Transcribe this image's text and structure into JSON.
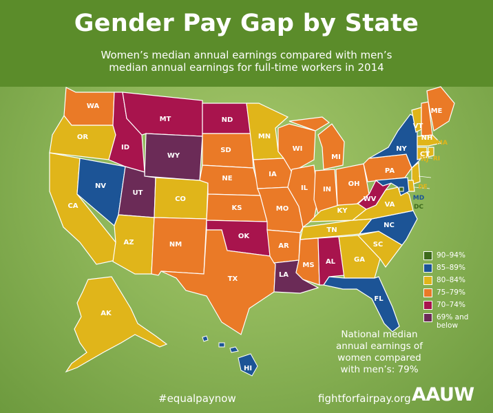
{
  "title": "Gender Pay Gap by State",
  "subtitle": "Women’s median annual earnings compared with men’s median annual earnings for full-time workers in 2014",
  "colors": {
    "range_90_94": "#3d6a1c",
    "range_85_89": "#1c5496",
    "range_80_84": "#e0b51a",
    "range_75_79": "#ea7a27",
    "range_70_74": "#a8144d",
    "range_69_below": "#6b2b57"
  },
  "legend": [
    {
      "label": "90–94%",
      "color": "#3d6a1c"
    },
    {
      "label": "85–89%",
      "color": "#1c5496"
    },
    {
      "label": "80–84%",
      "color": "#e0b51a"
    },
    {
      "label": "75–79%",
      "color": "#ea7a27"
    },
    {
      "label": "70–74%",
      "color": "#a8144d"
    },
    {
      "label": "69% and below",
      "color": "#6b2b57"
    }
  ],
  "states": [
    {
      "abbr": "WA",
      "range": "75–79%"
    },
    {
      "abbr": "OR",
      "range": "80–84%"
    },
    {
      "abbr": "CA",
      "range": "80–84%"
    },
    {
      "abbr": "NV",
      "range": "85–89%"
    },
    {
      "abbr": "ID",
      "range": "70–74%"
    },
    {
      "abbr": "MT",
      "range": "70–74%"
    },
    {
      "abbr": "WY",
      "range": "69% and below"
    },
    {
      "abbr": "UT",
      "range": "69% and below"
    },
    {
      "abbr": "AZ",
      "range": "80–84%"
    },
    {
      "abbr": "CO",
      "range": "80–84%"
    },
    {
      "abbr": "NM",
      "range": "75–79%"
    },
    {
      "abbr": "ND",
      "range": "70–74%"
    },
    {
      "abbr": "SD",
      "range": "75–79%"
    },
    {
      "abbr": "NE",
      "range": "75–79%"
    },
    {
      "abbr": "KS",
      "range": "75–79%"
    },
    {
      "abbr": "OK",
      "range": "70–74%"
    },
    {
      "abbr": "TX",
      "range": "75–79%"
    },
    {
      "abbr": "MN",
      "range": "80–84%"
    },
    {
      "abbr": "IA",
      "range": "75–79%"
    },
    {
      "abbr": "MO",
      "range": "75–79%"
    },
    {
      "abbr": "AR",
      "range": "75–79%"
    },
    {
      "abbr": "LA",
      "range": "69% and below"
    },
    {
      "abbr": "WI",
      "range": "75–79%"
    },
    {
      "abbr": "IL",
      "range": "75–79%"
    },
    {
      "abbr": "MI",
      "range": "75–79%"
    },
    {
      "abbr": "IN",
      "range": "75–79%"
    },
    {
      "abbr": "OH",
      "range": "75–79%"
    },
    {
      "abbr": "KY",
      "range": "80–84%"
    },
    {
      "abbr": "TN",
      "range": "80–84%"
    },
    {
      "abbr": "MS",
      "range": "75–79%"
    },
    {
      "abbr": "AL",
      "range": "70–74%"
    },
    {
      "abbr": "GA",
      "range": "80–84%"
    },
    {
      "abbr": "FL",
      "range": "85–89%"
    },
    {
      "abbr": "SC",
      "range": "80–84%"
    },
    {
      "abbr": "NC",
      "range": "85–89%"
    },
    {
      "abbr": "VA",
      "range": "80–84%"
    },
    {
      "abbr": "WV",
      "range": "70–74%"
    },
    {
      "abbr": "PA",
      "range": "75–79%"
    },
    {
      "abbr": "NY",
      "range": "85–89%"
    },
    {
      "abbr": "VT",
      "range": "80–84%"
    },
    {
      "abbr": "NH",
      "range": "75–79%"
    },
    {
      "abbr": "ME",
      "range": "75–79%"
    },
    {
      "abbr": "MA",
      "range": "80–84%"
    },
    {
      "abbr": "CT",
      "range": "80–84%"
    },
    {
      "abbr": "RI",
      "range": "80–84%"
    },
    {
      "abbr": "NJ",
      "range": "80–84%"
    },
    {
      "abbr": "DE",
      "range": "80–84%"
    },
    {
      "abbr": "MD",
      "range": "85–89%"
    },
    {
      "abbr": "DC",
      "range": "90–94%"
    },
    {
      "abbr": "AK",
      "range": "80–84%"
    },
    {
      "abbr": "HI",
      "range": "85–89%"
    }
  ],
  "national_note": "National median annual earnings of women compared with men’s: 79%",
  "hashtag": "#equalpaynow",
  "website": "fightforfairpay.org",
  "logo_text": "AAUW"
}
